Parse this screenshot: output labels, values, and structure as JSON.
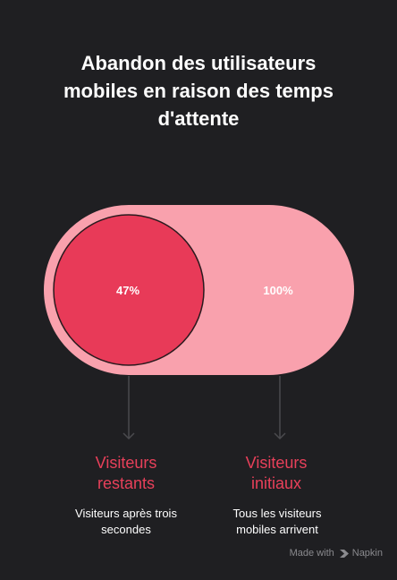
{
  "title": {
    "line1": "Abandon des utilisateurs",
    "line2": "mobiles en raison des temps",
    "line3": "d'attente"
  },
  "colors": {
    "background": "#1f1f22",
    "outer_pill": "#f9a1ad",
    "inner_circle": "#e83a58",
    "accent_text": "#e8405a",
    "arrow": "#4a4a4e"
  },
  "diagram": {
    "inner": {
      "value": "47%",
      "title_line1": "Visiteurs",
      "title_line2": "restants",
      "desc_line1": "Visiteurs après trois",
      "desc_line2": "secondes"
    },
    "outer": {
      "value": "100%",
      "title_line1": "Visiteurs",
      "title_line2": "initiaux",
      "desc_line1": "Tous les visiteurs",
      "desc_line2": "mobiles arrivent"
    }
  },
  "footer": {
    "made_with": "Made with",
    "brand": "Napkin",
    "brand_icon": "napkin-logo-icon"
  }
}
